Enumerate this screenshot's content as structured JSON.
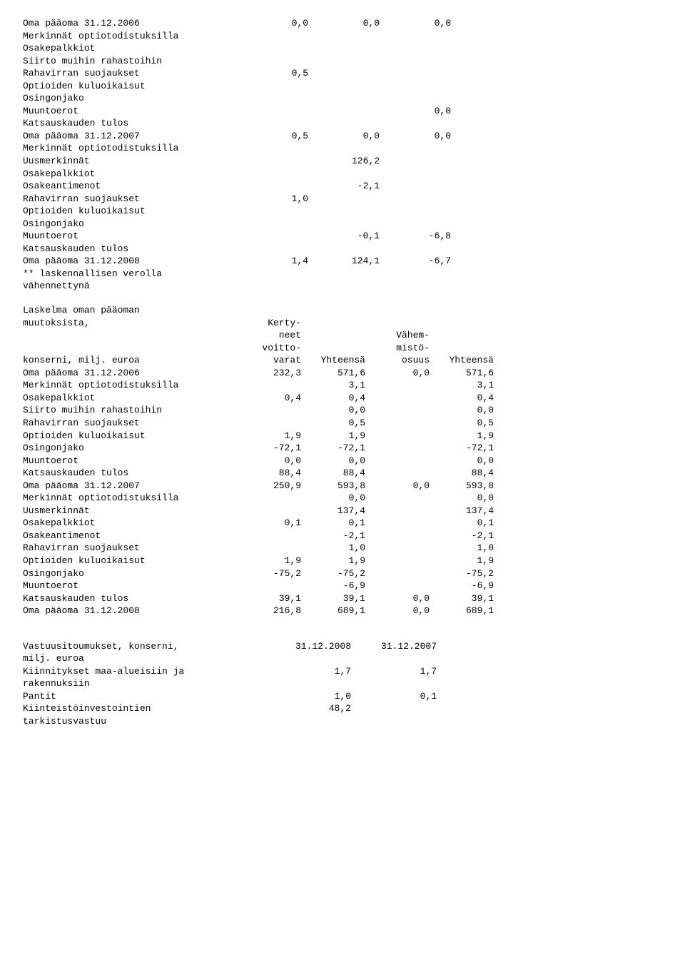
{
  "block1": {
    "rows": [
      {
        "label": "Oma pääoma 31.12.2006",
        "c1": "0,0",
        "c2": "0,0",
        "c3": "0,0"
      },
      {
        "label": "Merkinnät optiotodistuksilla"
      },
      {
        "label": "Osakepalkkiot"
      },
      {
        "label": "Siirto muihin rahastoihin"
      },
      {
        "label": "Rahavirran suojaukset",
        "c1": "0,5"
      },
      {
        "label": "Optioiden kuluoikaisut"
      },
      {
        "label": "Osingonjako"
      },
      {
        "label": "Muuntoerot",
        "c3": "0,0"
      },
      {
        "label": "Katsauskauden tulos"
      },
      {
        "label": "Oma pääoma 31.12.2007",
        "c1": "0,5",
        "c2": "0,0",
        "c3": "0,0"
      },
      {
        "label": "Merkinnät optiotodistuksilla"
      },
      {
        "label": "Uusmerkinnät",
        "c2": "126,2"
      },
      {
        "label": "Osakepalkkiot"
      },
      {
        "label": "Osakeantimenot",
        "c2": "-2,1"
      },
      {
        "label": "Rahavirran suojaukset",
        "c1": "1,0"
      },
      {
        "label": "Optioiden kuluoikaisut"
      },
      {
        "label": "Osingonjako"
      },
      {
        "label": "Muuntoerot",
        "c2": "-0,1",
        "c3": "-6,8"
      },
      {
        "label": "Katsauskauden tulos"
      },
      {
        "label": "Oma pääoma 31.12.2008",
        "c1": "1,4",
        "c2": "124,1",
        "c3": "-6,7"
      },
      {
        "label": "** laskennallisen verolla"
      },
      {
        "label": "vähennettynä"
      }
    ]
  },
  "block2": {
    "header1": {
      "l1": "Laskelma oman pääoman"
    },
    "header2": {
      "l1": "muutoksista,",
      "c1": "Kerty-"
    },
    "header3": {
      "c1": "neet",
      "c3": "Vähem-"
    },
    "header4": {
      "c1": "voitto-",
      "c3": "mistö-"
    },
    "header5": {
      "l1": "konserni, milj. euroa",
      "c1": "varat",
      "c2": "Yhteensä",
      "c3": "osuus",
      "c4": "Yhteensä"
    },
    "rows": [
      {
        "label": "Oma pääoma 31.12.2006",
        "c1": "232,3",
        "c2": "571,6",
        "c3": "0,0",
        "c4": "571,6"
      },
      {
        "label": "Merkinnät optiotodistuksilla",
        "c2": "3,1",
        "c4": "3,1"
      },
      {
        "label": "Osakepalkkiot",
        "c1": "0,4",
        "c2": "0,4",
        "c4": "0,4"
      },
      {
        "label": "Siirto muihin rahastoihin",
        "c2": "0,0",
        "c4": "0,0"
      },
      {
        "label": "Rahavirran suojaukset",
        "c2": "0,5",
        "c4": "0,5"
      },
      {
        "label": "Optioiden kuluoikaisut",
        "c1": "1,9",
        "c2": "1,9",
        "c4": "1,9"
      },
      {
        "label": "Osingonjako",
        "c1": "-72,1",
        "c2": "-72,1",
        "c4": "-72,1"
      },
      {
        "label": "Muuntoerot",
        "c1": "0,0",
        "c2": "0,0",
        "c4": "0,0"
      },
      {
        "label": "Katsauskauden tulos",
        "c1": "88,4",
        "c2": "88,4",
        "c4": "88,4"
      },
      {
        "label": "Oma pääoma 31.12.2007",
        "c1": "250,9",
        "c2": "593,8",
        "c3": "0,0",
        "c4": "593,8"
      },
      {
        "label": "Merkinnät optiotodistuksilla",
        "c2": "0,0",
        "c4": "0,0"
      },
      {
        "label": "Uusmerkinnät",
        "c2": "137,4",
        "c4": "137,4"
      },
      {
        "label": "Osakepalkkiot",
        "c1": "0,1",
        "c2": "0,1",
        "c4": "0,1"
      },
      {
        "label": "Osakeantimenot",
        "c2": "-2,1",
        "c4": "-2,1"
      },
      {
        "label": "Rahavirran suojaukset",
        "c2": "1,0",
        "c4": "1,0"
      },
      {
        "label": "Optioiden kuluoikaisut",
        "c1": "1,9",
        "c2": "1,9",
        "c4": "1,9"
      },
      {
        "label": "Osingonjako",
        "c1": "-75,2",
        "c2": "-75,2",
        "c4": "-75,2"
      },
      {
        "label": "Muuntoerot",
        "c2": "-6,9",
        "c4": "-6,9"
      },
      {
        "label": "Katsauskauden tulos",
        "c1": "39,1",
        "c2": "39,1",
        "c3": "0,0",
        "c4": "39,1"
      },
      {
        "label": "Oma pääoma 31.12.2008",
        "c1": "216,8",
        "c2": "689,1",
        "c3": "0,0",
        "c4": "689,1"
      }
    ]
  },
  "block3": {
    "header": {
      "l1": "Vastuusitoumukset, konserni,",
      "c1": "31.12.2008",
      "c2": "31.12.2007"
    },
    "header2": {
      "l1": "milj. euroa"
    },
    "rows": [
      {
        "label": "Kiinnitykset maa-alueisiin ja",
        "c1": "1,7",
        "c2": "1,7"
      },
      {
        "label": "rakennuksiin"
      },
      {
        "label": "Pantit",
        "c1": "1,0",
        "c2": "0,1"
      },
      {
        "label": "Kiinteistöinvestointien",
        "c1": "48,2"
      },
      {
        "label": "tarkistusvastuu"
      }
    ]
  }
}
